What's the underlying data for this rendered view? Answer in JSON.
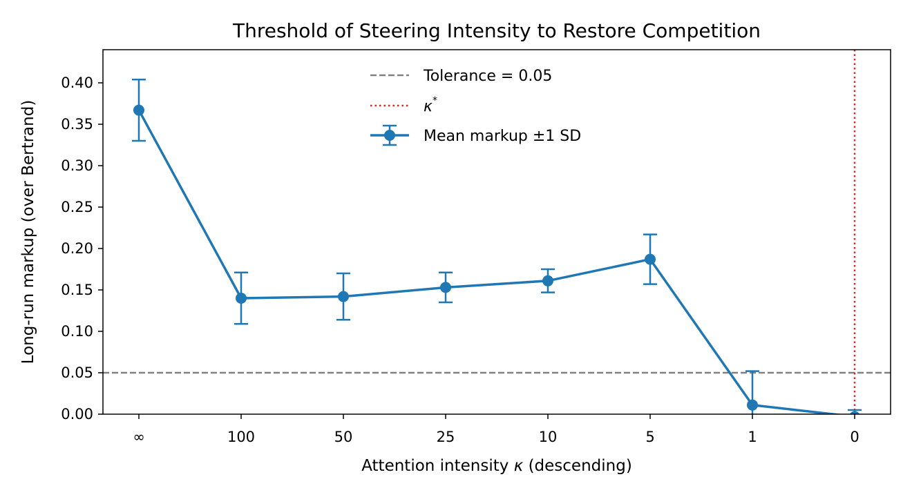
{
  "chart_data": {
    "type": "line",
    "title": "Threshold of Steering Intensity to Restore Competition",
    "xlabel_prefix": "Attention intensity ",
    "xlabel_symbol": "κ",
    "xlabel_suffix": " (descending)",
    "ylabel": "Long-run markup (over Bertrand)",
    "categories": [
      "∞",
      "100",
      "50",
      "25",
      "10",
      "5",
      "1",
      "0"
    ],
    "ylim": [
      0.0,
      0.44
    ],
    "yticks": [
      "0.00",
      "0.05",
      "0.10",
      "0.15",
      "0.20",
      "0.25",
      "0.30",
      "0.35",
      "0.40"
    ],
    "series": [
      {
        "name": "Mean markup ±1 SD",
        "values": [
          0.367,
          0.14,
          0.142,
          0.153,
          0.161,
          0.187,
          0.011,
          -0.003
        ],
        "sd": [
          0.037,
          0.031,
          0.028,
          0.018,
          0.014,
          0.03,
          0.041,
          0.008
        ],
        "color": "#1f77b4"
      }
    ],
    "reference_lines": [
      {
        "kind": "horizontal",
        "value": 0.05,
        "label": "Tolerance = 0.05",
        "style": "dashed",
        "color": "#808080"
      },
      {
        "kind": "vertical",
        "category": "0",
        "label_symbol": "κ",
        "label_sup": "*",
        "style": "dotted",
        "color": "#d62728"
      }
    ],
    "legend": "upper-center",
    "grid": false
  }
}
